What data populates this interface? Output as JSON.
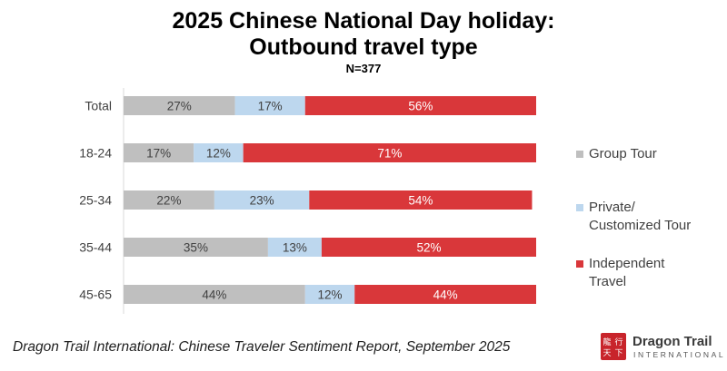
{
  "title_line1": "2025 Chinese National Day holiday:",
  "title_line2": "Outbound travel type",
  "subtitle": "N=377",
  "chart_data": {
    "type": "bar",
    "orientation": "horizontal",
    "stacked": true,
    "categories": [
      "Total",
      "18-24",
      "25-34",
      "35-44",
      "45-65"
    ],
    "series": [
      {
        "name": "Group Tour",
        "color": "#bfbfbf",
        "values": [
          27,
          17,
          22,
          35,
          44
        ],
        "labels": [
          "27%",
          "17%",
          "22%",
          "35%",
          "44%"
        ]
      },
      {
        "name": "Private/ Customized Tour",
        "color": "#bdd7ee",
        "values": [
          17,
          12,
          23,
          13,
          12
        ],
        "labels": [
          "17%",
          "12%",
          "23%",
          "13%",
          "12%"
        ]
      },
      {
        "name": "Independent Travel",
        "color": "#d9373a",
        "values": [
          56,
          71,
          54,
          52,
          44
        ],
        "labels": [
          "56%",
          "71%",
          "54%",
          "52%",
          "44%"
        ]
      }
    ],
    "xlim": [
      0,
      100
    ],
    "grid": false,
    "legend_position": "right"
  },
  "legend": {
    "item1": "Group Tour",
    "item2_line1": "Private/",
    "item2_line2": "Customized Tour",
    "item3_line1": "Independent",
    "item3_line2": "Travel"
  },
  "footer": "Dragon Trail International: Chinese Traveler Sentiment Report, September 2025",
  "logo": {
    "name": "Dragon Trail",
    "sub": "INTERNATIONAL",
    "seal_text": "龍行天下"
  }
}
